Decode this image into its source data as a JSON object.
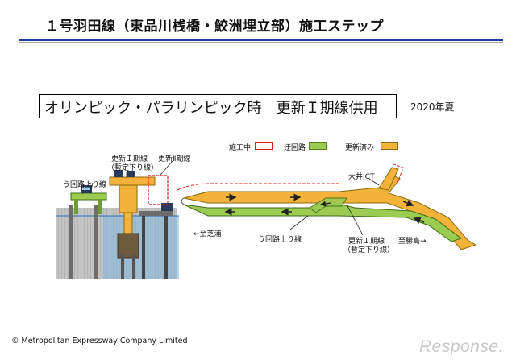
{
  "title": "１号羽田線（東品川桟橋・鮫洲埋立部）施工ステップ",
  "phase_label": "オリンピック・パラリンピック時　更新Ｉ期線供用",
  "year": "2020年夏",
  "legend": [
    {
      "label": "施工中",
      "color": "#e21b1b",
      "fill": "#ffffff"
    },
    {
      "label": "迂回路",
      "color": "#5a7d1f",
      "fill": "#9bcb50"
    },
    {
      "label": "更新済み",
      "color": "#8a6a10",
      "fill": "#f3b33a"
    }
  ],
  "section": {
    "bypass_up_label": "う回路上り線",
    "renewal_i_label": "更新Ｉ期線",
    "renewal_i_note": "（暫定下り線）",
    "renewal_ii_label": "更新Ⅱ期線"
  },
  "plan": {
    "jct_label": "大井JCT",
    "to_shibaura": "←至芝浦",
    "bypass_up_label": "う回路上り線",
    "renewal_i_label": "更新Ｉ期線",
    "renewal_i_note": "（暫定下り線）",
    "to_katsushima": "至勝島→"
  },
  "colors": {
    "accent_blue": "#1f3f9a",
    "updated_orange": "#f3b33a",
    "bypass_green": "#9bcb50",
    "construction_red": "#e21b1b"
  },
  "footer": {
    "copyright": "© Metropolitan Expressway Company Limited",
    "brand": "Response."
  }
}
